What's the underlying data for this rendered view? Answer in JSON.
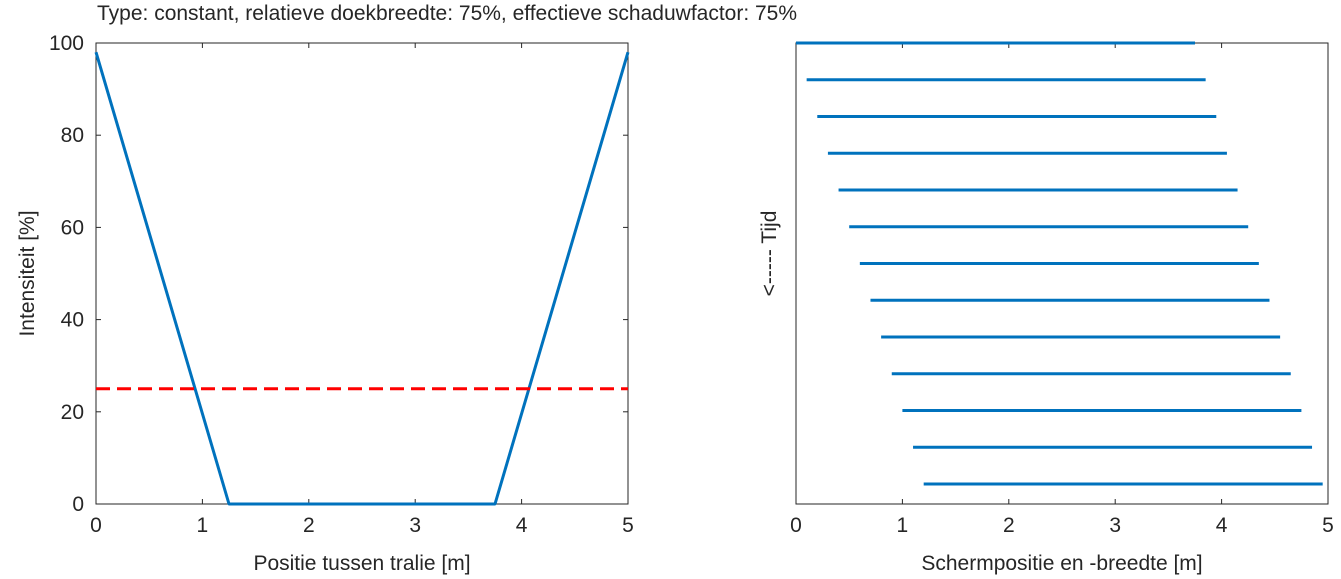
{
  "title": "Type: constant,  relatieve doekbreedte: 75%,  effectieve schaduwfactor: 75%",
  "colors": {
    "series": "#0072BD",
    "threshold": "#FF0000",
    "axis": "#262626"
  },
  "chart_data": [
    {
      "type": "line",
      "xlabel": "Positie tussen tralie [m]",
      "ylabel": "Intensiteit [%]",
      "xlim": [
        0,
        5
      ],
      "ylim": [
        0,
        100
      ],
      "xticks": [
        0,
        1,
        2,
        3,
        4,
        5
      ],
      "yticks": [
        0,
        20,
        40,
        60,
        80,
        100
      ],
      "xtick_labels": [
        "0",
        "1",
        "2",
        "3",
        "4",
        "5"
      ],
      "ytick_labels": [
        "0",
        "20",
        "40",
        "60",
        "80",
        "100"
      ],
      "grid": false,
      "series": [
        {
          "x": [
            0,
            1.25,
            3.75,
            5
          ],
          "y": [
            98,
            0,
            0,
            98
          ],
          "style": "solid",
          "color": "#0072BD"
        },
        {
          "x": [
            0,
            5
          ],
          "y": [
            25,
            25
          ],
          "style": "dashed",
          "color": "#FF0000"
        }
      ]
    },
    {
      "type": "line",
      "xlabel": "Schermpositie en -breedte [m]",
      "ylabel": "<----- Tijd",
      "xlim": [
        0,
        5
      ],
      "xticks": [
        0,
        1,
        2,
        3,
        4,
        5
      ],
      "xtick_labels": [
        "0",
        "1",
        "2",
        "3",
        "4",
        "5"
      ],
      "yticks": [],
      "grid": false,
      "segments": [
        {
          "start": 0.0,
          "end": 3.75
        },
        {
          "start": 0.1,
          "end": 3.85
        },
        {
          "start": 0.2,
          "end": 3.95
        },
        {
          "start": 0.3,
          "end": 4.05
        },
        {
          "start": 0.4,
          "end": 4.15
        },
        {
          "start": 0.5,
          "end": 4.25
        },
        {
          "start": 0.6,
          "end": 4.35
        },
        {
          "start": 0.7,
          "end": 4.45
        },
        {
          "start": 0.8,
          "end": 4.55
        },
        {
          "start": 0.9,
          "end": 4.65
        },
        {
          "start": 1.0,
          "end": 4.75
        },
        {
          "start": 1.1,
          "end": 4.85
        },
        {
          "start": 1.2,
          "end": 4.95
        }
      ]
    }
  ]
}
